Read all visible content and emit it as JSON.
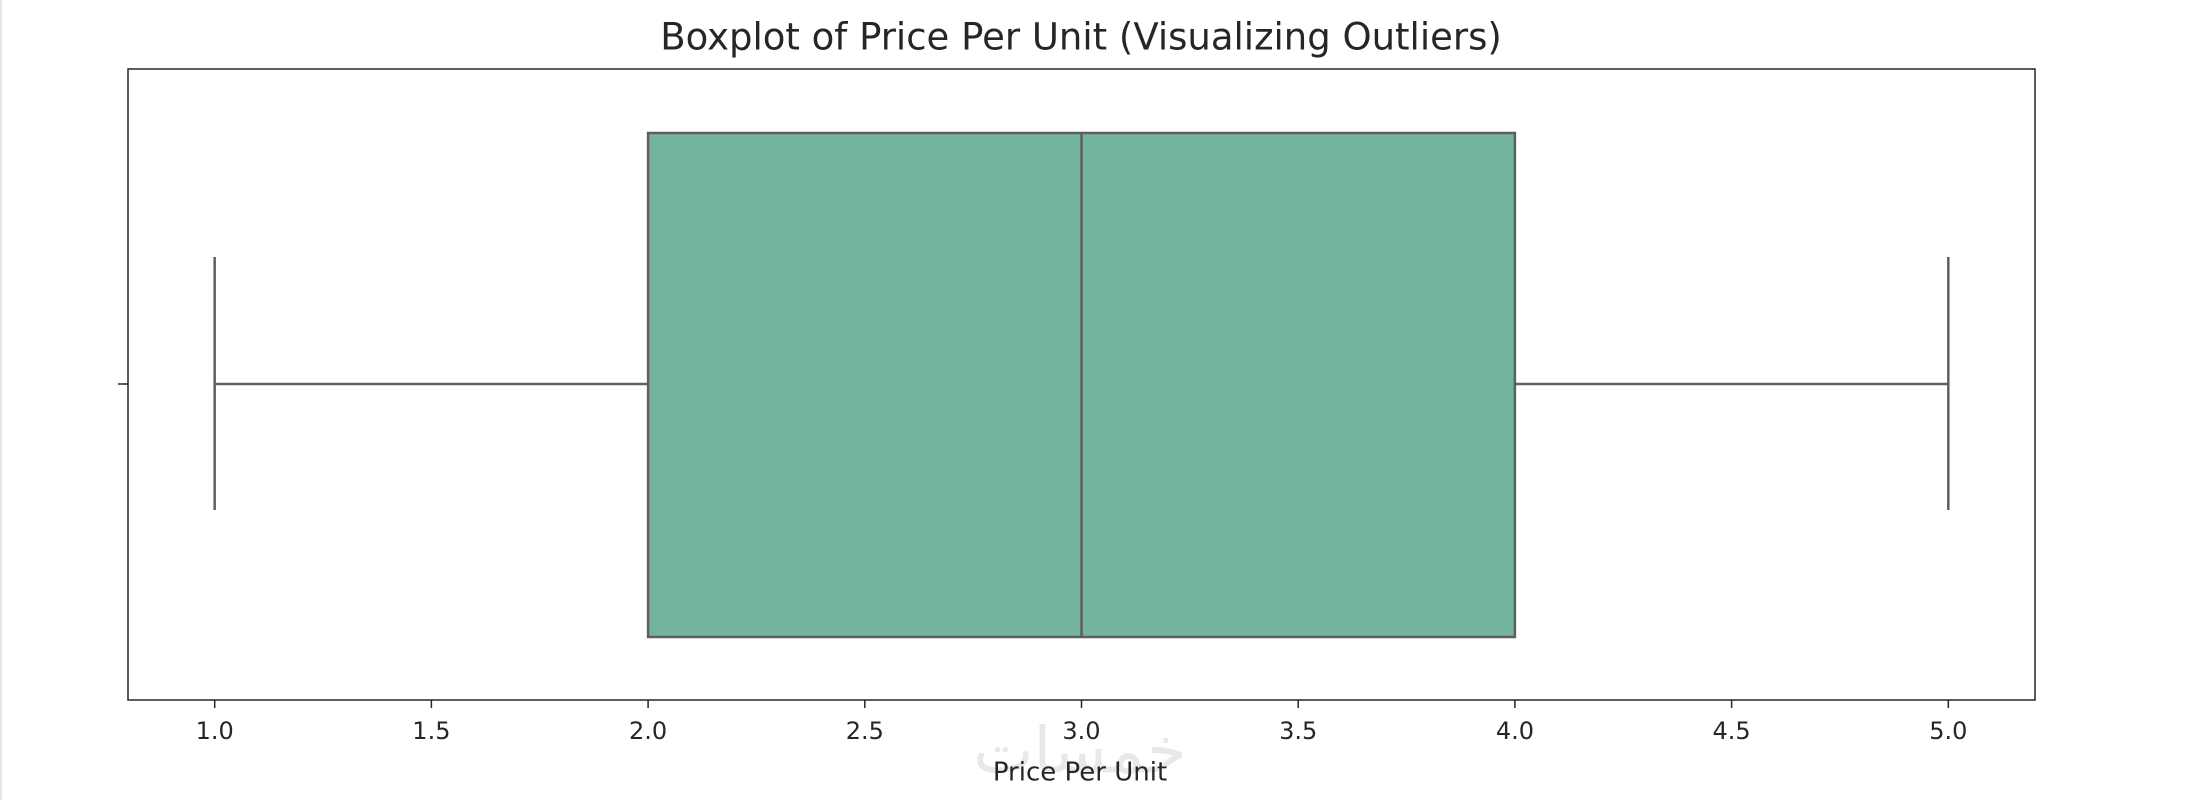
{
  "chart_data": {
    "type": "box",
    "title": "Boxplot of Price Per Unit (Visualizing Outliers)",
    "xlabel": "Price Per Unit",
    "box": {
      "min": 1,
      "q1": 2,
      "median": 3,
      "q3": 4,
      "max": 5
    },
    "color": "#73b4a0",
    "xlim": [
      0.8,
      5.2
    ],
    "xticks": [
      {
        "value": 1,
        "label": "1.0"
      },
      {
        "value": 1.5,
        "label": "1.5"
      },
      {
        "value": 2,
        "label": "2.0"
      },
      {
        "value": 2.5,
        "label": "2.5"
      },
      {
        "value": 3,
        "label": "3.0"
      },
      {
        "value": 3.5,
        "label": "3.5"
      },
      {
        "value": 4,
        "label": "4.0"
      },
      {
        "value": 4.5,
        "label": "4.5"
      },
      {
        "value": 5,
        "label": "5.0"
      }
    ],
    "watermark": "خمسات"
  }
}
